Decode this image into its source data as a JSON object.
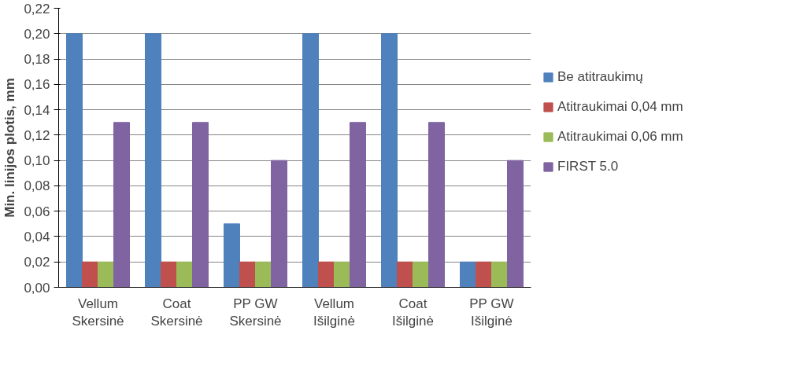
{
  "chart_data": {
    "type": "bar",
    "ylabel": "Min. linijos plotis, mm",
    "categories": [
      "Vellum\nSkersinė",
      "Coat\nSkersinė",
      "PP GW\nSkersinė",
      "Vellum\nIšilginė",
      "Coat\nIšilginė",
      "PP GW\nIšilginė"
    ],
    "series": [
      {
        "name": "Be atitraukimų",
        "color": "#4f81bd",
        "values": [
          0.2,
          0.2,
          0.05,
          0.2,
          0.2,
          0.02
        ]
      },
      {
        "name": "Atitraukimai 0,04 mm",
        "color": "#c0504d",
        "values": [
          0.02,
          0.02,
          0.02,
          0.02,
          0.02,
          0.02
        ]
      },
      {
        "name": "Atitraukimai 0,06 mm",
        "color": "#9bbb59",
        "values": [
          0.02,
          0.02,
          0.02,
          0.02,
          0.02,
          0.02
        ]
      },
      {
        "name": "FIRST 5.0",
        "color": "#8064a2",
        "values": [
          0.13,
          0.13,
          0.1,
          0.13,
          0.13,
          0.1
        ]
      }
    ],
    "ylim": [
      0,
      0.22
    ],
    "yticks": [
      {
        "value": 0,
        "label": "0,00"
      },
      {
        "value": 0.02,
        "label": "0,02"
      },
      {
        "value": 0.04,
        "label": "0,04"
      },
      {
        "value": 0.06,
        "label": "0,06"
      },
      {
        "value": 0.08,
        "label": "0,08"
      },
      {
        "value": 0.1,
        "label": "0,10"
      },
      {
        "value": 0.12,
        "label": "0,12"
      },
      {
        "value": 0.14,
        "label": "0,14"
      },
      {
        "value": 0.16,
        "label": "0,16"
      },
      {
        "value": 0.18,
        "label": "0,18"
      },
      {
        "value": 0.2,
        "label": "0,20"
      },
      {
        "value": 0.22,
        "label": "0,22"
      }
    ],
    "grid": "y",
    "legend": "right"
  }
}
